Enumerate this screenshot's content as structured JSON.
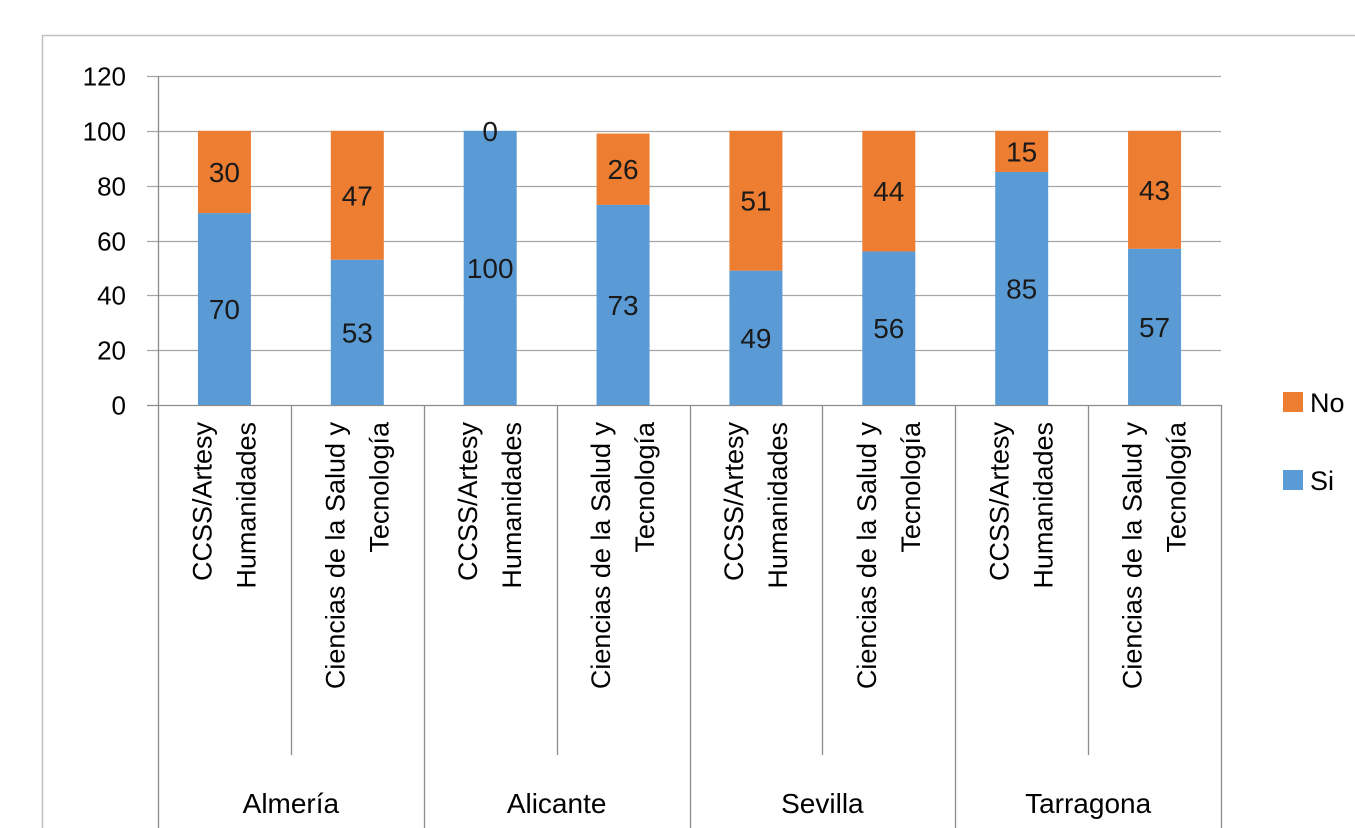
{
  "chart_data": {
    "type": "bar",
    "stacked": true,
    "title": "",
    "xlabel": "",
    "ylabel": "",
    "ylim": [
      0,
      120
    ],
    "yticks": [
      0,
      20,
      40,
      60,
      80,
      100,
      120
    ],
    "grid": true,
    "legend_position": "right",
    "groups": [
      {
        "name": "Almería",
        "categories": [
          "CCSS/Artesy Humanidades",
          "Ciencias de la Salud y Tecnología"
        ]
      },
      {
        "name": "Alicante",
        "categories": [
          "CCSS/Artesy Humanidades",
          "Ciencias de la Salud y Tecnología"
        ]
      },
      {
        "name": "Sevilla",
        "categories": [
          "CCSS/Artesy Humanidades",
          "Ciencias de la Salud y Tecnología"
        ]
      },
      {
        "name": "Tarragona",
        "categories": [
          "CCSS/Artesy Humanidades",
          "Ciencias de la Salud y Tecnología"
        ]
      }
    ],
    "category_lines": [
      [
        "CCSS/Artesy",
        "Humanidades"
      ],
      [
        "Ciencias de la Salud y",
        "Tecnología"
      ],
      [
        "CCSS/Artesy",
        "Humanidades"
      ],
      [
        "Ciencias de la Salud y",
        "Tecnología"
      ],
      [
        "CCSS/Artesy",
        "Humanidades"
      ],
      [
        "Ciencias de la Salud y",
        "Tecnología"
      ],
      [
        "CCSS/Artesy",
        "Humanidades"
      ],
      [
        "Ciencias de la Salud y",
        "Tecnología"
      ]
    ],
    "series": [
      {
        "name": "Si",
        "color": "#5b9bd5",
        "values": [
          70,
          53,
          100,
          73,
          49,
          56,
          85,
          57
        ]
      },
      {
        "name": "No",
        "color": "#ed7d31",
        "values": [
          30,
          47,
          0,
          26,
          51,
          44,
          15,
          43
        ]
      }
    ],
    "legend": [
      {
        "name": "No",
        "color": "#ed7d31"
      },
      {
        "name": "Si",
        "color": "#5b9bd5"
      }
    ]
  }
}
